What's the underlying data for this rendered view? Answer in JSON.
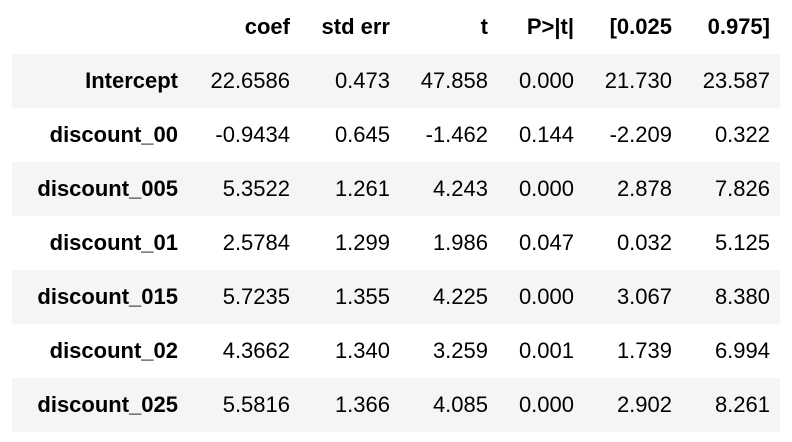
{
  "table": {
    "headers": [
      "",
      "coef",
      "std err",
      "t",
      "P>|t|",
      "[0.025",
      "0.975]"
    ],
    "rows": [
      {
        "label": "Intercept",
        "values": [
          "22.6586",
          "0.473",
          "47.858",
          "0.000",
          "21.730",
          "23.587"
        ]
      },
      {
        "label": "discount_00",
        "values": [
          "-0.9434",
          "0.645",
          "-1.462",
          "0.144",
          "-2.209",
          "0.322"
        ]
      },
      {
        "label": "discount_005",
        "values": [
          "5.3522",
          "1.261",
          "4.243",
          "0.000",
          "2.878",
          "7.826"
        ]
      },
      {
        "label": "discount_01",
        "values": [
          "2.5784",
          "1.299",
          "1.986",
          "0.047",
          "0.032",
          "5.125"
        ]
      },
      {
        "label": "discount_015",
        "values": [
          "5.7235",
          "1.355",
          "4.225",
          "0.000",
          "3.067",
          "8.380"
        ]
      },
      {
        "label": "discount_02",
        "values": [
          "4.3662",
          "1.340",
          "3.259",
          "0.001",
          "1.739",
          "6.994"
        ]
      },
      {
        "label": "discount_025",
        "values": [
          "5.5816",
          "1.366",
          "4.085",
          "0.000",
          "2.902",
          "8.261"
        ]
      }
    ]
  }
}
